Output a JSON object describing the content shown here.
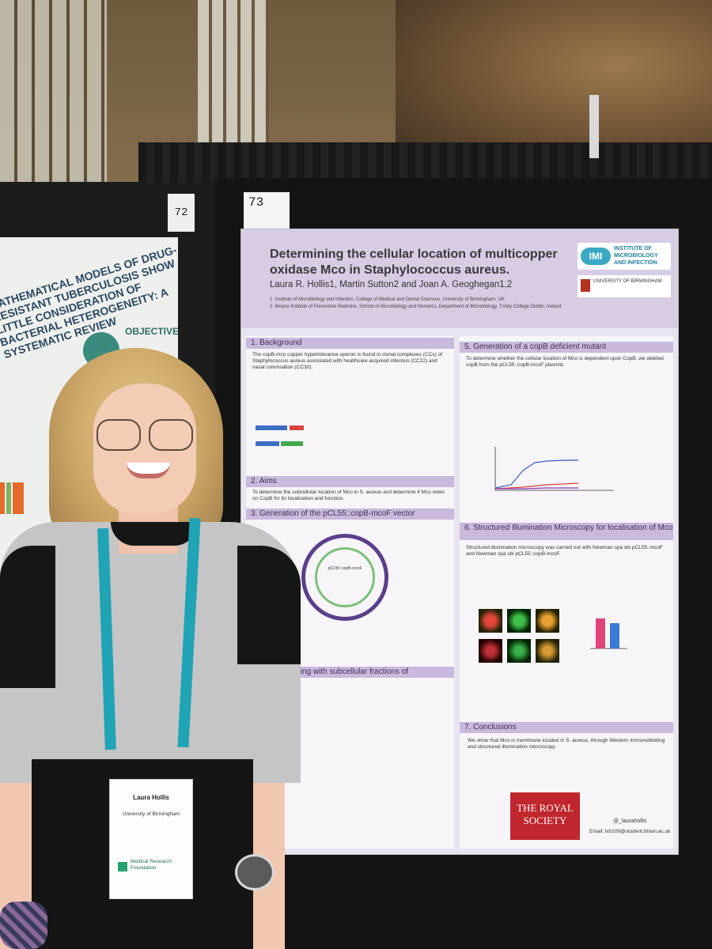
{
  "board_numbers": {
    "left": "72",
    "main": "73"
  },
  "left_poster": {
    "heading": "MATHEMATICAL MODELS OF DRUG-RESISTANT TUBERCULOSIS SHOW LITTLE CONSIDERATION OF BACTERIAL HETEROGENEITY: A SYSTEMATIC REVIEW",
    "objective": "OBJECTIVE"
  },
  "poster": {
    "title": "Determining the cellular location of multicopper oxidase Mco in Staphylococcus aureus.",
    "authors": "Laura R. Hollis1, Martin Sutton2 and Joan A. Geoghegan1,2",
    "affil1": "1. Institute of Microbiology and Infection, College of Medical and Dental Sciences, University of Birmingham, UK",
    "affil2": "2. Moyne Institute of Preventive Medicine, School of Microbiology and Genetics, Department of Microbiology, Trinity College Dublin, Ireland",
    "imi_badge": "IMI",
    "imi_text": "INSTITUTE OF MICROBIOLOGY AND INFECTION",
    "uob_text": "UNIVERSITY OF BIRMINGHAM",
    "sections": {
      "background": "1. Background",
      "aims": "2. Aims",
      "generation": "3. Generation of the pCL55::copB-mcoF vector",
      "immunoblot": "n immunoblotting with subcellular fractions of",
      "mutant": "5. Generation of a copB deficient mutant",
      "sim": "6. Structured Illumination Microscopy for localisation of Mco",
      "conclusions": "7. Conclusions"
    },
    "background_text": "The copB-mco copper hypertolerance operon is found in clonal complexes (CCs) of Staphylococcus aureus associated with healthcare acquired infection (CC22) and nasal colonisation (CC30).",
    "aims_text": "To determine the subcellular location of Mco in S. aureus and determine if Mco relies on CopB for its localisation and function.",
    "plasmid_label": "pCL55::copB-mcoF",
    "mutant_text": "To determine whether the cellular location of Mco is dependent upon CopB, we deleted copB from the pCL55::copB-mcoF plasmid.",
    "sim_text": "Structured illumination microscopy was carried out with Newman spa sbi pCL55::mcoF and Newman spa sbi pCL55::copB-mcoF.",
    "conclusion_text": "We show that Mco is membrane located in S. aureus, through Western immunoblotting and structured illumination microscopy.",
    "royal_society": "THE ROYAL SOCIETY",
    "twitter": "@_laurahollis",
    "email": "Email: lxh109@student.bham.ac.uk"
  },
  "badge": {
    "name": "Laura Hollis",
    "org": "University of Birmingham",
    "sponsor": "Medical Research Foundation"
  }
}
